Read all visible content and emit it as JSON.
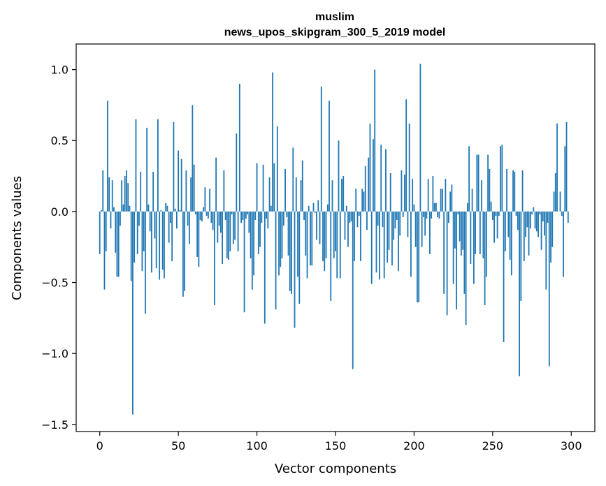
{
  "chart_data": {
    "type": "bar",
    "title": "muslim",
    "subtitle": "news_upos_skipgram_300_5_2019 model",
    "xlabel": "Vector components",
    "ylabel": "Components values",
    "xlim": [
      -15,
      315
    ],
    "ylim": [
      -1.55,
      1.18
    ],
    "x_ticks": [
      0,
      50,
      100,
      150,
      200,
      250,
      300
    ],
    "x_tick_labels": [
      "0",
      "50",
      "100",
      "150",
      "200",
      "250",
      "300"
    ],
    "y_ticks": [
      -1.5,
      -1.0,
      -0.5,
      0.0,
      0.5,
      1.0
    ],
    "y_tick_labels": [
      "−1.5",
      "−1.0",
      "−0.5",
      "0.0",
      "0.5",
      "1.0"
    ],
    "bar_color": "#1f77b4",
    "values": [
      -0.3,
      0.01,
      0.29,
      -0.55,
      -0.28,
      0.78,
      0.24,
      -0.12,
      0.22,
      0.03,
      -0.29,
      -0.46,
      -0.46,
      -0.1,
      0.22,
      0.05,
      0.25,
      0.29,
      0.2,
      0.04,
      -0.49,
      -1.43,
      -0.36,
      0.65,
      -0.3,
      -0.1,
      0.28,
      -0.42,
      -0.28,
      -0.72,
      0.59,
      0.05,
      -0.14,
      -0.43,
      0.28,
      -0.19,
      -0.4,
      0.65,
      -0.48,
      0.01,
      -0.41,
      -0.47,
      0.06,
      0.04,
      -0.22,
      -0.08,
      -0.35,
      0.63,
      0.02,
      -0.12,
      0.43,
      0.01,
      0.37,
      -0.6,
      -0.56,
      0.29,
      -0.1,
      -0.23,
      0.24,
      0.75,
      0.33,
      -0.02,
      -0.32,
      -0.39,
      -0.06,
      -0.07,
      0.03,
      0.17,
      -0.03,
      -0.05,
      0.16,
      -0.08,
      -0.13,
      -0.66,
      0.38,
      -0.22,
      -0.1,
      -0.15,
      -0.37,
      0.29,
      -0.06,
      -0.33,
      -0.34,
      -0.28,
      -0.02,
      -0.23,
      -0.2,
      0.55,
      -0.28,
      0.9,
      -0.08,
      -0.06,
      -0.71,
      -0.05,
      -0.02,
      -0.15,
      -0.33,
      -0.55,
      -0.45,
      -0.06,
      0.34,
      -0.3,
      -0.25,
      -0.08,
      0.33,
      -0.79,
      -0.05,
      -0.12,
      0.24,
      0.04,
      0.98,
      0.34,
      -0.69,
      0.6,
      -0.45,
      -0.39,
      -0.33,
      -0.1,
      0.3,
      -0.04,
      -0.31,
      -0.56,
      -0.58,
      0.45,
      -0.82,
      0.24,
      -0.46,
      -0.65,
      0.22,
      0.36,
      -0.06,
      -0.31,
      -0.47,
      0.04,
      -0.38,
      -0.38,
      0.06,
      -0.01,
      -0.2,
      0.08,
      -0.23,
      0.88,
      -0.35,
      -0.42,
      -0.33,
      0.05,
      0.78,
      -0.63,
      0.22,
      -0.33,
      -0.28,
      -0.47,
      0.5,
      -0.47,
      0.23,
      0.25,
      -0.2,
      0.04,
      -0.25,
      -0.08,
      -0.07,
      -1.11,
      -0.35,
      0.16,
      -0.11,
      -0.03,
      -0.35,
      0.16,
      0.14,
      0.32,
      -0.13,
      0.38,
      0.62,
      -0.51,
      0.51,
      1.0,
      -0.43,
      -0.1,
      -0.48,
      0.47,
      -0.11,
      -0.47,
      0.44,
      -0.36,
      -0.27,
      0.27,
      -0.38,
      -0.2,
      -0.12,
      -0.06,
      -0.42,
      -0.17,
      0.29,
      -0.04,
      0.26,
      0.79,
      -0.18,
      0.62,
      -0.46,
      0.23,
      0.05,
      -0.25,
      -0.64,
      -0.64,
      1.04,
      -0.25,
      -0.04,
      -0.17,
      -0.05,
      0.23,
      -0.3,
      -0.05,
      0.25,
      0.06,
      0.06,
      -0.04,
      -0.05,
      0.16,
      0.16,
      -0.58,
      0.23,
      -0.73,
      -0.08,
      0.14,
      0.19,
      -0.51,
      -0.26,
      -0.69,
      -0.02,
      -0.21,
      -0.31,
      -0.27,
      -0.58,
      -0.8,
      0.06,
      0.46,
      -0.37,
      0.16,
      -0.51,
      -0.3,
      0.4,
      0.4,
      -0.3,
      0.22,
      -0.33,
      -0.66,
      -0.46,
      0.4,
      0.3,
      0.07,
      -0.06,
      -0.22,
      -0.03,
      -0.19,
      -0.03,
      0.46,
      0.47,
      -0.92,
      -0.28,
      0.3,
      -0.18,
      -0.34,
      -0.45,
      0.29,
      0.28,
      -0.03,
      -0.13,
      -1.16,
      -0.63,
      0.29,
      -0.35,
      -0.18,
      -0.11,
      -0.31,
      -0.12,
      -0.02,
      0.03,
      -0.12,
      -0.14,
      -0.18,
      -0.02,
      -0.27,
      -0.07,
      -0.17,
      -0.55,
      -0.08,
      -1.09,
      -0.36,
      -0.25,
      0.14,
      0.27,
      0.62,
      0.0,
      0.14,
      -0.03,
      -0.46,
      0.46,
      0.63,
      -0.08
    ]
  }
}
